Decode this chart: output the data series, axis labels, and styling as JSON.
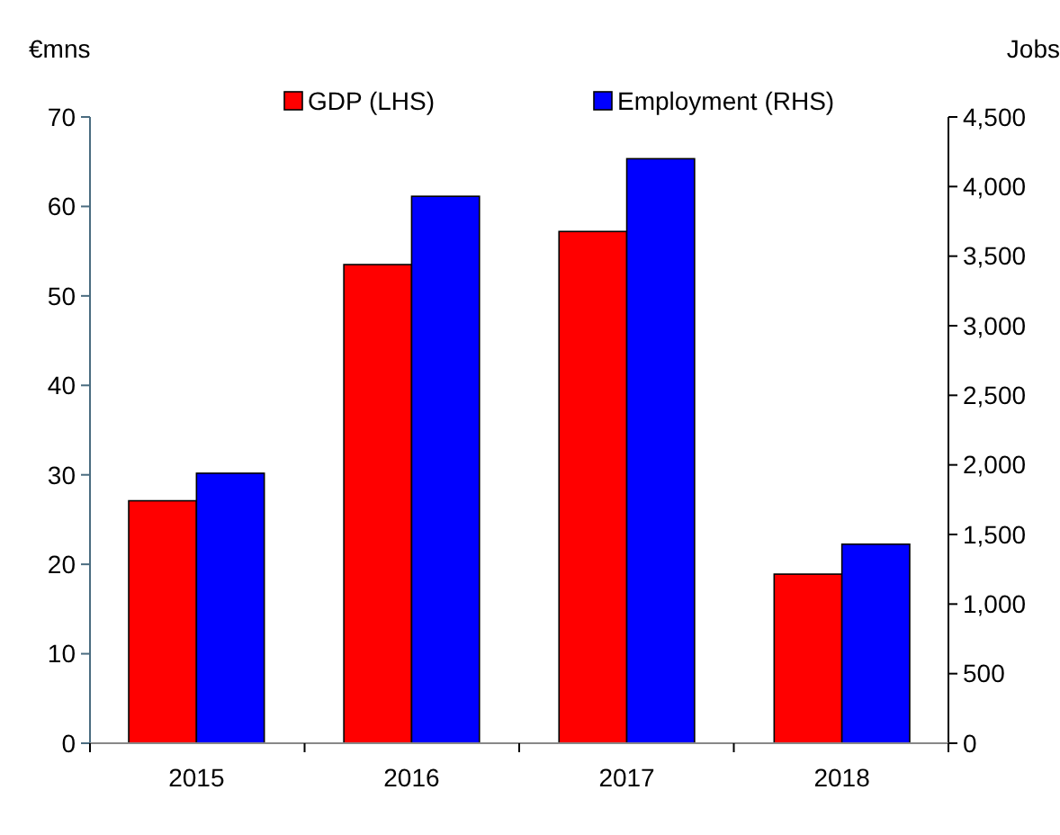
{
  "chart_data": {
    "type": "bar",
    "ylabel": "€mns",
    "y2label": "Jobs",
    "categories": [
      "2015",
      "2016",
      "2017",
      "2018"
    ],
    "series": [
      {
        "name": "GDP (LHS)",
        "color": "#ff0000",
        "values": [
          27.1,
          53.5,
          57.2,
          18.9
        ]
      },
      {
        "name": "Employment (RHS)",
        "color": "#0000ff",
        "values": [
          1940,
          3930,
          4200,
          1430
        ],
        "axis": "y2"
      }
    ],
    "ylim": [
      0,
      70
    ],
    "yticks": [
      0,
      10,
      20,
      30,
      40,
      50,
      60,
      70
    ],
    "y2lim": [
      0,
      4500
    ],
    "y2ticks": [
      0,
      {
        "value": 500,
        "label": "500"
      },
      {
        "value": 1000,
        "label": "1,000"
      },
      {
        "value": 1500,
        "label": "1,500"
      },
      {
        "value": 2000,
        "label": "2,000"
      },
      {
        "value": 2500,
        "label": "2,500"
      },
      {
        "value": 3000,
        "label": "3,000"
      },
      {
        "value": 3500,
        "label": "3,500"
      },
      {
        "value": 4000,
        "label": "4,000"
      },
      {
        "value": 4500,
        "label": "4,500"
      }
    ],
    "legend": "top",
    "grid": false
  }
}
